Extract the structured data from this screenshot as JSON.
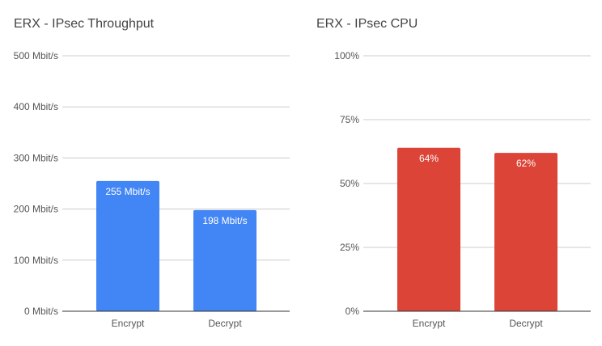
{
  "chart_data": [
    {
      "type": "bar",
      "title": "ERX - IPsec Throughput",
      "xlabel": "",
      "ylabel": "",
      "categories": [
        "Encrypt",
        "Decrypt"
      ],
      "values": [
        255,
        198
      ],
      "data_labels": [
        "255 Mbit/s",
        "198 Mbit/s"
      ],
      "ylim": [
        0,
        500
      ],
      "yticks": [
        0,
        100,
        200,
        300,
        400,
        500
      ],
      "ytick_labels": [
        "0 Mbit/s",
        "100 Mbit/s",
        "200 Mbit/s",
        "300 Mbit/s",
        "400 Mbit/s",
        "500 Mbit/s"
      ],
      "grid": true,
      "bar_color": "#4285f4"
    },
    {
      "type": "bar",
      "title": "ERX - IPsec CPU",
      "xlabel": "",
      "ylabel": "",
      "categories": [
        "Encrypt",
        "Decrypt"
      ],
      "values": [
        64,
        62
      ],
      "data_labels": [
        "64%",
        "62%"
      ],
      "ylim": [
        0,
        100
      ],
      "yticks": [
        0,
        25,
        50,
        75,
        100
      ],
      "ytick_labels": [
        "0%",
        "25%",
        "50%",
        "75%",
        "100%"
      ],
      "grid": true,
      "bar_color": "#db4437"
    }
  ]
}
